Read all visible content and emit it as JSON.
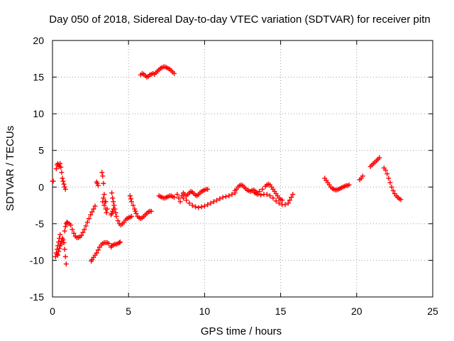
{
  "chart_data": {
    "type": "scatter",
    "title": "Day 050 of 2018, Sidereal Day-to-day VTEC variation (SDTVAR) for receiver pitn",
    "xlabel": "GPS time / hours",
    "ylabel": "SDTVAR / TECUs",
    "xlim": [
      0,
      25
    ],
    "ylim": [
      -15,
      20
    ],
    "xticks": [
      0,
      5,
      10,
      15,
      20,
      25
    ],
    "yticks": [
      -15,
      -10,
      -5,
      0,
      5,
      10,
      15,
      20
    ],
    "grid": true,
    "marker": "plus",
    "color": "#ff0000",
    "segments": [
      {
        "name": "s01",
        "points": [
          [
            0.0,
            0.8
          ],
          [
            0.05,
            0.8
          ]
        ]
      },
      {
        "name": "s02",
        "points": [
          [
            0.25,
            2.5
          ],
          [
            0.3,
            3.0
          ],
          [
            0.35,
            3.2
          ],
          [
            0.4,
            3.0
          ],
          [
            0.45,
            2.8
          ],
          [
            0.5,
            3.2
          ],
          [
            0.55,
            2.7
          ],
          [
            0.6,
            2.0
          ],
          [
            0.65,
            1.2
          ],
          [
            0.7,
            0.8
          ],
          [
            0.75,
            0.4
          ],
          [
            0.8,
            0.0
          ],
          [
            0.85,
            -0.3
          ]
        ]
      },
      {
        "name": "s03",
        "points": [
          [
            0.2,
            -9.5
          ],
          [
            0.25,
            -9.0
          ],
          [
            0.3,
            -8.5
          ],
          [
            0.35,
            -8.0
          ],
          [
            0.4,
            -7.5
          ],
          [
            0.45,
            -7.0
          ],
          [
            0.5,
            -6.5
          ]
        ]
      },
      {
        "name": "s04",
        "points": [
          [
            0.3,
            -9.2
          ],
          [
            0.35,
            -9.3
          ],
          [
            0.4,
            -8.8
          ],
          [
            0.45,
            -8.4
          ],
          [
            0.5,
            -8.0
          ],
          [
            0.55,
            -7.8
          ],
          [
            0.6,
            -7.4
          ],
          [
            0.65,
            -7.0
          ],
          [
            0.7,
            -7.2
          ],
          [
            0.75,
            -7.6
          ],
          [
            0.8,
            -8.5
          ],
          [
            0.85,
            -9.5
          ],
          [
            0.9,
            -10.5
          ]
        ]
      },
      {
        "name": "s05",
        "points": [
          [
            0.8,
            -6.0
          ],
          [
            0.85,
            -5.4
          ],
          [
            0.9,
            -5.0
          ],
          [
            0.95,
            -4.8
          ],
          [
            1.0,
            -4.9
          ],
          [
            1.1,
            -5.0
          ],
          [
            1.2,
            -5.2
          ],
          [
            1.3,
            -5.8
          ],
          [
            1.4,
            -6.3
          ],
          [
            1.5,
            -6.7
          ],
          [
            1.6,
            -6.9
          ],
          [
            1.7,
            -6.9
          ],
          [
            1.8,
            -6.8
          ],
          [
            1.9,
            -6.6
          ],
          [
            2.0,
            -6.2
          ],
          [
            2.1,
            -5.8
          ],
          [
            2.2,
            -5.3
          ],
          [
            2.3,
            -4.8
          ],
          [
            2.4,
            -4.3
          ],
          [
            2.5,
            -3.8
          ],
          [
            2.6,
            -3.4
          ],
          [
            2.7,
            -3.0
          ],
          [
            2.8,
            -2.6
          ]
        ]
      },
      {
        "name": "s06",
        "points": [
          [
            2.55,
            -10.1
          ],
          [
            2.6,
            -9.9
          ],
          [
            2.7,
            -9.6
          ],
          [
            2.8,
            -9.3
          ],
          [
            2.9,
            -9.0
          ],
          [
            3.0,
            -8.6
          ],
          [
            3.1,
            -8.2
          ],
          [
            3.2,
            -7.9
          ],
          [
            3.3,
            -7.7
          ],
          [
            3.4,
            -7.6
          ],
          [
            3.5,
            -7.6
          ],
          [
            3.6,
            -7.6
          ],
          [
            3.7,
            -7.7
          ]
        ]
      },
      {
        "name": "s07",
        "points": [
          [
            2.9,
            0.7
          ],
          [
            2.95,
            0.5
          ],
          [
            3.0,
            0.2
          ]
        ]
      },
      {
        "name": "s08",
        "points": [
          [
            3.25,
            2.0
          ],
          [
            3.3,
            1.5
          ],
          [
            3.35,
            0.5
          ],
          [
            3.4,
            -1.0
          ],
          [
            3.45,
            -2.0
          ],
          [
            3.5,
            -3.0
          ],
          [
            3.55,
            -3.5
          ],
          [
            3.3,
            -2.0
          ],
          [
            3.35,
            -1.5
          ],
          [
            3.4,
            -2.5
          ],
          [
            3.5,
            -2.0
          ],
          [
            3.6,
            -3.0
          ]
        ]
      },
      {
        "name": "s09",
        "points": [
          [
            3.9,
            -0.8
          ],
          [
            3.95,
            -1.5
          ],
          [
            4.0,
            -2.0
          ],
          [
            4.05,
            -2.5
          ],
          [
            4.1,
            -3.0
          ],
          [
            4.15,
            -3.5
          ],
          [
            3.85,
            -3.8
          ],
          [
            3.9,
            -3.6
          ],
          [
            3.95,
            -3.3
          ],
          [
            4.0,
            -3.0
          ]
        ]
      },
      {
        "name": "s10",
        "points": [
          [
            3.85,
            -8.2
          ],
          [
            3.9,
            -8.0
          ],
          [
            4.0,
            -7.9
          ],
          [
            4.1,
            -7.8
          ],
          [
            4.2,
            -7.8
          ],
          [
            4.3,
            -7.7
          ],
          [
            4.4,
            -7.6
          ],
          [
            4.45,
            -7.5
          ]
        ]
      },
      {
        "name": "s11",
        "points": [
          [
            4.2,
            -4.0
          ],
          [
            4.3,
            -4.6
          ],
          [
            4.4,
            -5.0
          ],
          [
            4.5,
            -5.2
          ],
          [
            4.6,
            -5.0
          ],
          [
            4.7,
            -4.8
          ],
          [
            4.8,
            -4.5
          ],
          [
            4.9,
            -4.3
          ],
          [
            5.0,
            -4.2
          ],
          [
            5.1,
            -4.1
          ],
          [
            5.2,
            -4.0
          ]
        ]
      },
      {
        "name": "s12",
        "points": [
          [
            5.1,
            -1.2
          ],
          [
            5.15,
            -1.6
          ],
          [
            5.2,
            -2.0
          ],
          [
            5.3,
            -2.5
          ],
          [
            5.4,
            -3.0
          ],
          [
            5.45,
            -3.3
          ],
          [
            5.5,
            -3.6
          ],
          [
            5.6,
            -4.0
          ],
          [
            5.7,
            -4.2
          ],
          [
            5.8,
            -4.3
          ],
          [
            5.9,
            -4.2
          ],
          [
            6.0,
            -4.0
          ],
          [
            6.1,
            -3.8
          ],
          [
            6.2,
            -3.6
          ],
          [
            6.3,
            -3.4
          ],
          [
            6.4,
            -3.3
          ],
          [
            6.5,
            -3.3
          ]
        ]
      },
      {
        "name": "s13",
        "points": [
          [
            5.8,
            15.3
          ],
          [
            5.9,
            15.5
          ],
          [
            6.0,
            15.4
          ],
          [
            6.1,
            15.2
          ],
          [
            6.2,
            15.0
          ],
          [
            6.3,
            15.1
          ],
          [
            6.4,
            15.3
          ],
          [
            6.5,
            15.4
          ],
          [
            6.6,
            15.5
          ],
          [
            6.7,
            15.4
          ],
          [
            6.8,
            15.6
          ],
          [
            6.9,
            15.8
          ],
          [
            7.0,
            16.0
          ],
          [
            7.1,
            16.2
          ],
          [
            7.2,
            16.3
          ],
          [
            7.3,
            16.4
          ],
          [
            7.4,
            16.4
          ],
          [
            7.5,
            16.3
          ],
          [
            7.6,
            16.2
          ],
          [
            7.7,
            16.1
          ],
          [
            7.8,
            15.9
          ],
          [
            7.9,
            15.7
          ],
          [
            8.0,
            15.5
          ]
        ]
      },
      {
        "name": "s14",
        "points": [
          [
            7.0,
            -1.2
          ],
          [
            7.1,
            -1.3
          ],
          [
            7.2,
            -1.4
          ],
          [
            7.3,
            -1.5
          ],
          [
            7.4,
            -1.5
          ],
          [
            7.5,
            -1.4
          ],
          [
            7.6,
            -1.3
          ],
          [
            7.7,
            -1.2
          ],
          [
            7.8,
            -1.2
          ],
          [
            7.9,
            -1.3
          ],
          [
            8.0,
            -1.4
          ]
        ]
      },
      {
        "name": "s15",
        "points": [
          [
            8.2,
            -1.0
          ],
          [
            8.3,
            -1.5
          ],
          [
            8.4,
            -2.0
          ],
          [
            8.5,
            -1.2
          ],
          [
            8.6,
            -0.8
          ],
          [
            8.7,
            -1.0
          ],
          [
            8.8,
            -1.2
          ],
          [
            8.9,
            -1.0
          ],
          [
            9.0,
            -0.8
          ],
          [
            9.1,
            -0.6
          ],
          [
            9.2,
            -0.7
          ],
          [
            9.3,
            -0.9
          ],
          [
            9.4,
            -1.1
          ],
          [
            9.5,
            -1.2
          ],
          [
            9.6,
            -1.0
          ],
          [
            9.7,
            -0.8
          ],
          [
            9.8,
            -0.6
          ],
          [
            9.9,
            -0.5
          ],
          [
            10.0,
            -0.4
          ],
          [
            10.1,
            -0.3
          ],
          [
            10.2,
            -0.3
          ]
        ]
      },
      {
        "name": "s16",
        "points": [
          [
            8.6,
            -1.5
          ],
          [
            8.8,
            -1.8
          ],
          [
            9.0,
            -2.2
          ],
          [
            9.2,
            -2.5
          ],
          [
            9.4,
            -2.7
          ],
          [
            9.6,
            -2.8
          ],
          [
            9.8,
            -2.7
          ],
          [
            10.0,
            -2.6
          ],
          [
            10.2,
            -2.4
          ],
          [
            10.4,
            -2.2
          ],
          [
            10.6,
            -2.0
          ],
          [
            10.8,
            -1.8
          ],
          [
            11.0,
            -1.6
          ],
          [
            11.2,
            -1.4
          ],
          [
            11.4,
            -1.3
          ],
          [
            11.6,
            -1.2
          ],
          [
            11.8,
            -1.0
          ],
          [
            12.0,
            -0.8
          ]
        ]
      },
      {
        "name": "s17",
        "points": [
          [
            12.0,
            -0.5
          ],
          [
            12.1,
            -0.3
          ],
          [
            12.2,
            0.0
          ],
          [
            12.3,
            0.2
          ],
          [
            12.4,
            0.3
          ],
          [
            12.5,
            0.2
          ],
          [
            12.6,
            0.0
          ],
          [
            12.7,
            -0.2
          ],
          [
            12.8,
            -0.4
          ],
          [
            12.9,
            -0.5
          ],
          [
            13.0,
            -0.6
          ],
          [
            13.1,
            -0.5
          ],
          [
            13.2,
            -0.4
          ],
          [
            13.3,
            -0.5
          ],
          [
            13.4,
            -0.7
          ]
        ]
      },
      {
        "name": "s18",
        "points": [
          [
            13.3,
            -0.8
          ],
          [
            13.5,
            -1.0
          ],
          [
            13.7,
            -1.1
          ],
          [
            13.9,
            -1.0
          ],
          [
            14.1,
            -1.0
          ],
          [
            14.3,
            -1.2
          ],
          [
            14.5,
            -1.5
          ],
          [
            14.7,
            -1.9
          ],
          [
            14.9,
            -2.2
          ],
          [
            15.1,
            -2.4
          ],
          [
            15.3,
            -2.4
          ],
          [
            15.5,
            -2.2
          ],
          [
            15.6,
            -1.8
          ],
          [
            15.7,
            -1.4
          ],
          [
            15.8,
            -1.0
          ]
        ]
      },
      {
        "name": "s19",
        "points": [
          [
            13.4,
            -0.9
          ],
          [
            13.6,
            -0.6
          ],
          [
            13.8,
            -0.3
          ],
          [
            14.0,
            0.1
          ],
          [
            14.1,
            0.3
          ],
          [
            14.2,
            0.4
          ],
          [
            14.3,
            0.3
          ],
          [
            14.4,
            0.0
          ],
          [
            14.5,
            -0.3
          ],
          [
            14.6,
            -0.6
          ],
          [
            14.7,
            -0.9
          ],
          [
            14.8,
            -1.2
          ],
          [
            14.9,
            -1.5
          ],
          [
            15.0,
            -1.7
          ],
          [
            15.1,
            -1.8
          ]
        ]
      },
      {
        "name": "s20",
        "points": [
          [
            17.9,
            1.2
          ],
          [
            18.0,
            0.9
          ],
          [
            18.1,
            0.6
          ],
          [
            18.2,
            0.3
          ],
          [
            18.3,
            0.0
          ],
          [
            18.4,
            -0.2
          ],
          [
            18.5,
            -0.3
          ],
          [
            18.6,
            -0.4
          ],
          [
            18.7,
            -0.4
          ],
          [
            18.8,
            -0.3
          ],
          [
            18.9,
            -0.2
          ],
          [
            19.0,
            -0.1
          ],
          [
            19.1,
            0.0
          ],
          [
            19.2,
            0.1
          ],
          [
            19.3,
            0.2
          ],
          [
            19.4,
            0.2
          ],
          [
            19.5,
            0.3
          ]
        ]
      },
      {
        "name": "s21",
        "points": [
          [
            20.2,
            1.0
          ],
          [
            20.3,
            1.2
          ],
          [
            20.4,
            1.5
          ]
        ]
      },
      {
        "name": "s22",
        "points": [
          [
            20.9,
            2.8
          ],
          [
            21.0,
            3.0
          ],
          [
            21.1,
            3.2
          ],
          [
            21.2,
            3.4
          ],
          [
            21.3,
            3.6
          ],
          [
            21.4,
            3.8
          ],
          [
            21.5,
            4.0
          ]
        ]
      },
      {
        "name": "s23",
        "points": [
          [
            21.8,
            2.6
          ],
          [
            21.9,
            2.3
          ],
          [
            22.0,
            1.8
          ],
          [
            22.1,
            1.2
          ],
          [
            22.2,
            0.6
          ],
          [
            22.3,
            0.0
          ],
          [
            22.4,
            -0.5
          ],
          [
            22.5,
            -0.9
          ],
          [
            22.6,
            -1.2
          ],
          [
            22.7,
            -1.4
          ],
          [
            22.8,
            -1.6
          ],
          [
            22.9,
            -1.7
          ]
        ]
      }
    ]
  }
}
